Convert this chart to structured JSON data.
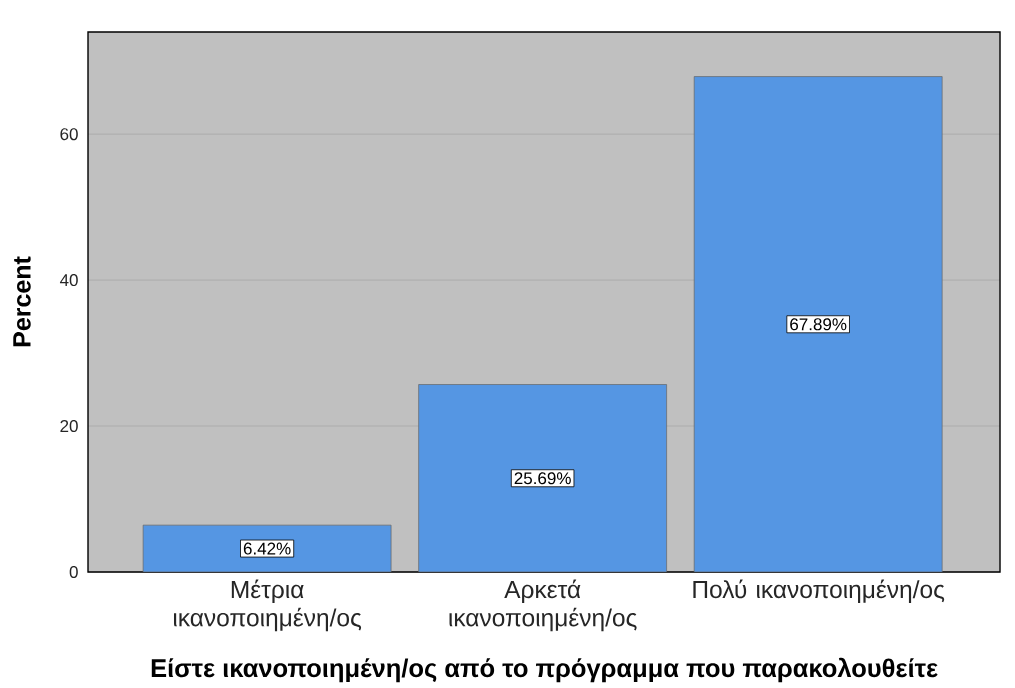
{
  "chart_data": {
    "type": "bar",
    "xlabel": "Είστε ικανοποιημένη/ος από το πρόγραμμα που παρακολουθείτε",
    "ylabel": "Percent",
    "categories": [
      "Μέτρια ικανοποιημένη/ος",
      "Αρκετά ικανοποιημένη/ος",
      "Πολύ ικανοποιημένη/ος"
    ],
    "values": [
      6.42,
      25.69,
      67.89
    ],
    "color": "#5596e3",
    "value_labels": [
      "6.42%",
      "25.69%",
      "67.89%"
    ],
    "ylim": [
      0,
      74
    ],
    "yticks": [
      0,
      20,
      40,
      60
    ],
    "grid": "y"
  }
}
